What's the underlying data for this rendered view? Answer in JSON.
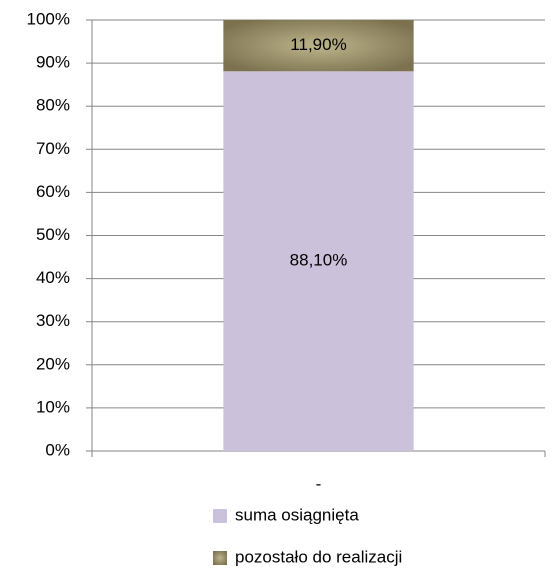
{
  "chart_data": {
    "type": "stacked_bar",
    "categories": [
      "-"
    ],
    "series": [
      {
        "name": "suma osiągnięta",
        "color": "#ccc1da",
        "values": [
          88.1
        ],
        "value_labels": [
          "88,10%"
        ]
      },
      {
        "name": "pozostało do realizacji",
        "color": "#948a54",
        "values": [
          11.9
        ],
        "value_labels": [
          "11,90%"
        ]
      }
    ],
    "ylim": [
      0,
      100
    ],
    "yticks": [
      {
        "value": 0,
        "label": "0%"
      },
      {
        "value": 10,
        "label": "10%"
      },
      {
        "value": 20,
        "label": "20%"
      },
      {
        "value": 30,
        "label": "30%"
      },
      {
        "value": 40,
        "label": "40%"
      },
      {
        "value": 50,
        "label": "50%"
      },
      {
        "value": 60,
        "label": "60%"
      },
      {
        "value": 70,
        "label": "70%"
      },
      {
        "value": 80,
        "label": "80%"
      },
      {
        "value": 90,
        "label": "90%"
      },
      {
        "value": 100,
        "label": "100%"
      }
    ],
    "grid": true,
    "legend": "bottom"
  }
}
